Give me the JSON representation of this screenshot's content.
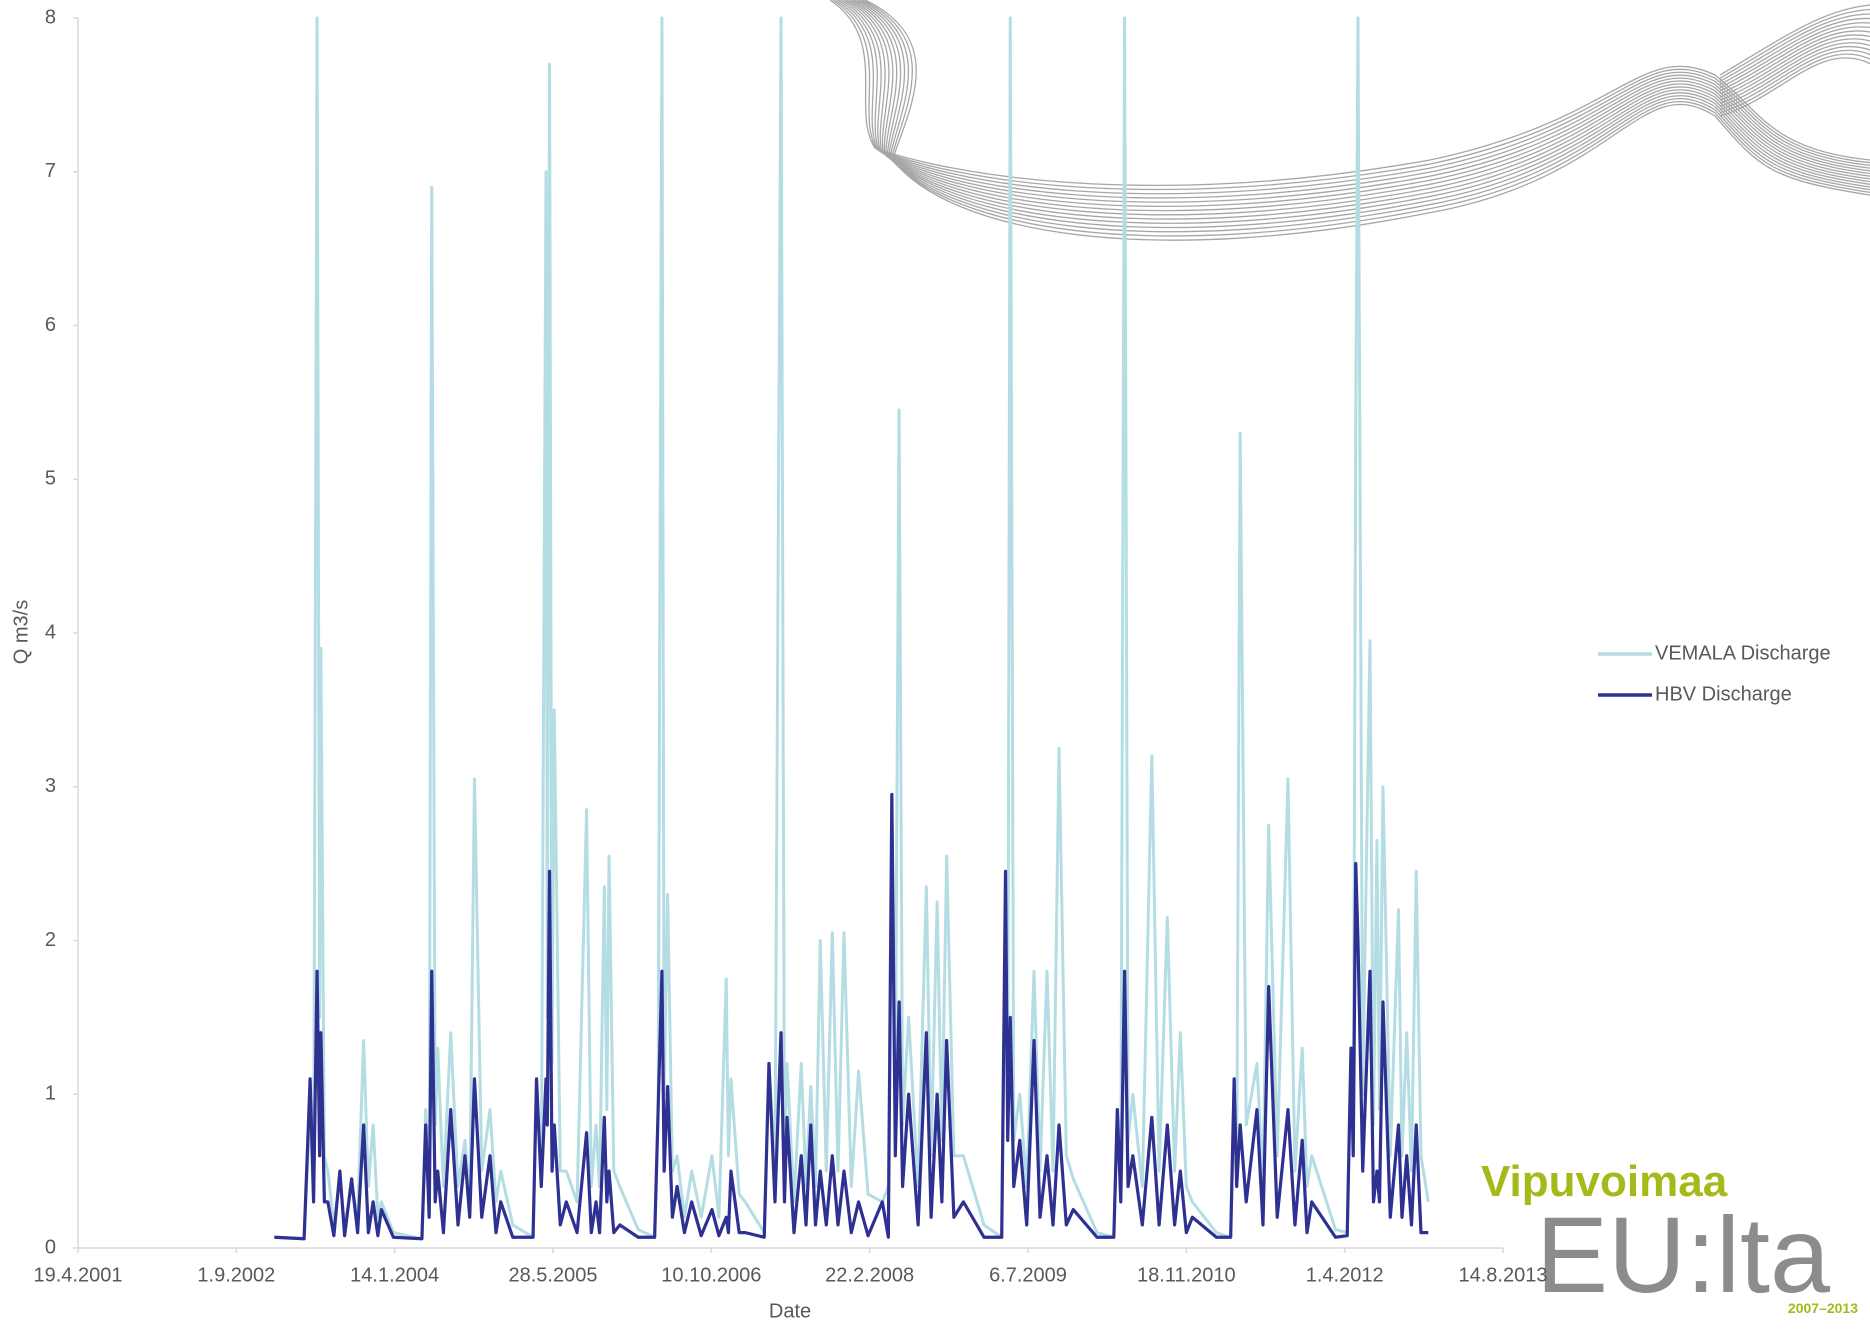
{
  "chart_data": {
    "type": "line",
    "y_label": "Q m3/s",
    "x_label": "Date",
    "xlim": [
      "2001-04-19",
      "2013-08-14"
    ],
    "xticks": [
      {
        "value": "2001-04-19",
        "label": "19.4.2001"
      },
      {
        "value": "2002-09-01",
        "label": "1.9.2002"
      },
      {
        "value": "2004-01-14",
        "label": "14.1.2004"
      },
      {
        "value": "2005-05-28",
        "label": "28.5.2005"
      },
      {
        "value": "2006-10-10",
        "label": "10.10.2006"
      },
      {
        "value": "2008-02-22",
        "label": "22.2.2008"
      },
      {
        "value": "2009-07-06",
        "label": "6.7.2009"
      },
      {
        "value": "2010-11-18",
        "label": "18.11.2010"
      },
      {
        "value": "2012-04-01",
        "label": "1.4.2012"
      },
      {
        "value": "2013-08-14",
        "label": "14.8.2013"
      }
    ],
    "ylim": [
      0,
      8
    ],
    "yticks": [
      0,
      1,
      2,
      3,
      4,
      5,
      6,
      7,
      8
    ],
    "grid": false,
    "legend": "right",
    "x": [
      "2002-12-30",
      "2003-04-03",
      "2003-04-22",
      "2003-05-03",
      "2003-05-14",
      "2003-05-22",
      "2003-05-26",
      "2003-06-06",
      "2003-06-17",
      "2003-07-06",
      "2003-07-25",
      "2003-08-09",
      "2003-08-31",
      "2003-09-19",
      "2003-10-08",
      "2003-10-23",
      "2003-11-07",
      "2003-11-22",
      "2003-12-03",
      "2004-01-10",
      "2004-04-09",
      "2004-04-21",
      "2004-05-02",
      "2004-05-10",
      "2004-05-21",
      "2004-05-29",
      "2004-06-16",
      "2004-07-09",
      "2004-08-01",
      "2004-08-23",
      "2004-09-07",
      "2004-09-22",
      "2004-10-15",
      "2004-11-10",
      "2004-11-29",
      "2004-12-14",
      "2005-01-21",
      "2005-03-26",
      "2005-04-06",
      "2005-04-21",
      "2005-05-06",
      "2005-05-10",
      "2005-05-17",
      "2005-05-25",
      "2005-06-01",
      "2005-06-20",
      "2005-07-09",
      "2005-08-12",
      "2005-09-11",
      "2005-09-26",
      "2005-10-11",
      "2005-10-22",
      "2005-11-06",
      "2005-11-14",
      "2005-11-21",
      "2005-12-06",
      "2005-12-25",
      "2006-02-21",
      "2006-04-14",
      "2006-04-25",
      "2006-05-07",
      "2006-05-14",
      "2006-05-25",
      "2006-06-09",
      "2006-06-24",
      "2006-07-17",
      "2006-08-09",
      "2006-09-08",
      "2006-10-12",
      "2006-11-03",
      "2006-11-26",
      "2006-12-03",
      "2006-12-11",
      "2007-01-06",
      "2007-01-25",
      "2007-03-26",
      "2007-04-10",
      "2007-04-29",
      "2007-05-18",
      "2007-05-29",
      "2007-06-06",
      "2007-06-28",
      "2007-07-21",
      "2007-08-05",
      "2007-08-20",
      "2007-09-04",
      "2007-09-19",
      "2007-10-08",
      "2007-10-27",
      "2007-11-14",
      "2007-12-03",
      "2007-12-26",
      "2008-01-18",
      "2008-02-17",
      "2008-04-02",
      "2008-04-21",
      "2008-05-02",
      "2008-05-13",
      "2008-05-25",
      "2008-06-05",
      "2008-06-24",
      "2008-07-24",
      "2008-08-19",
      "2008-09-03",
      "2008-09-22",
      "2008-10-07",
      "2008-10-22",
      "2008-11-14",
      "2008-12-14",
      "2009-02-17",
      "2009-04-14",
      "2009-04-26",
      "2009-05-03",
      "2009-05-11",
      "2009-05-22",
      "2009-06-10",
      "2009-07-02",
      "2009-07-25",
      "2009-08-13",
      "2009-09-04",
      "2009-09-23",
      "2009-10-12",
      "2009-11-04",
      "2009-11-26",
      "2010-02-09",
      "2010-04-03",
      "2010-04-14",
      "2010-04-25",
      "2010-05-07",
      "2010-05-18",
      "2010-06-02",
      "2010-07-02",
      "2010-08-01",
      "2010-08-24",
      "2010-09-19",
      "2010-10-12",
      "2010-10-30",
      "2010-11-18",
      "2010-12-07",
      "2011-02-21",
      "2011-04-07",
      "2011-04-18",
      "2011-04-26",
      "2011-05-07",
      "2011-05-26",
      "2011-06-29",
      "2011-07-18",
      "2011-08-05",
      "2011-09-01",
      "2011-10-05",
      "2011-10-27",
      "2011-11-19",
      "2011-12-04",
      "2011-12-19",
      "2012-03-03",
      "2012-04-09",
      "2012-04-21",
      "2012-04-28",
      "2012-05-06",
      "2012-05-13",
      "2012-05-28",
      "2012-06-20",
      "2012-07-01",
      "2012-07-12",
      "2012-07-20",
      "2012-07-31",
      "2012-08-23",
      "2012-09-18",
      "2012-09-29",
      "2012-10-14",
      "2012-10-29",
      "2012-11-13",
      "2012-11-28",
      "2012-12-21"
    ],
    "series": [
      {
        "name": "VEMALA Discharge",
        "color": "#b4dde3",
        "values": [
          0.07,
          0.06,
          0.9,
          0.3,
          8,
          1.5,
          3.9,
          0.6,
          0.5,
          0.15,
          0.45,
          0.15,
          0.4,
          0.2,
          1.35,
          0.4,
          0.8,
          0.2,
          0.3,
          0.1,
          0.06,
          0.9,
          0.3,
          6.9,
          0.8,
          1.3,
          0.4,
          1.4,
          0.4,
          0.7,
          0.3,
          3.05,
          0.5,
          0.9,
          0.3,
          0.5,
          0.15,
          0.07,
          1.1,
          0.4,
          7.0,
          1.5,
          7.7,
          1.2,
          3.5,
          0.5,
          0.5,
          0.3,
          2.85,
          0.4,
          0.8,
          0.4,
          2.35,
          0.9,
          2.55,
          0.5,
          0.4,
          0.12,
          0.07,
          0.9,
          8,
          1.0,
          2.3,
          0.5,
          0.6,
          0.2,
          0.5,
          0.2,
          0.6,
          0.2,
          1.75,
          0.6,
          1.1,
          0.35,
          0.3,
          0.1,
          1.2,
          0.5,
          8,
          0.6,
          1.2,
          0.3,
          1.2,
          0.4,
          1.05,
          0.4,
          2.0,
          0.5,
          2.05,
          0.5,
          2.05,
          0.4,
          1.15,
          0.35,
          0.3,
          0.4,
          2.9,
          1.0,
          5.45,
          0.8,
          1.5,
          0.4,
          2.35,
          0.6,
          2.25,
          0.7,
          2.55,
          0.6,
          0.6,
          0.15,
          0.07,
          2.3,
          0.8,
          8,
          0.7,
          1.0,
          0.4,
          1.8,
          0.5,
          1.8,
          0.5,
          3.25,
          0.6,
          0.45,
          0.1,
          0.07,
          0.9,
          0.4,
          8,
          0.7,
          1.0,
          0.4,
          3.2,
          0.5,
          2.15,
          0.5,
          1.4,
          0.4,
          0.3,
          0.1,
          0.07,
          1.1,
          0.5,
          5.3,
          0.8,
          1.2,
          0.4,
          2.75,
          0.6,
          3.05,
          0.5,
          1.3,
          0.4,
          0.6,
          0.12,
          0.1,
          1.3,
          0.6,
          5.35,
          8,
          1.0,
          3.95,
          0.8,
          2.65,
          0.9,
          3.0,
          0.6,
          2.2,
          0.6,
          1.4,
          0.5,
          2.45,
          0.6,
          0.3
        ]
      },
      {
        "name": "HBV Discharge",
        "color": "#2e3192",
        "values": [
          0.07,
          0.06,
          1.1,
          0.3,
          1.8,
          0.6,
          1.4,
          0.3,
          0.3,
          0.08,
          0.5,
          0.08,
          0.45,
          0.1,
          0.8,
          0.1,
          0.3,
          0.08,
          0.25,
          0.07,
          0.06,
          0.8,
          0.2,
          1.8,
          0.3,
          0.5,
          0.1,
          0.9,
          0.15,
          0.6,
          0.2,
          1.1,
          0.2,
          0.6,
          0.1,
          0.3,
          0.07,
          0.07,
          1.1,
          0.4,
          1.1,
          0.8,
          2.45,
          0.5,
          0.8,
          0.15,
          0.3,
          0.1,
          0.75,
          0.1,
          0.3,
          0.1,
          0.85,
          0.3,
          0.5,
          0.1,
          0.15,
          0.07,
          0.07,
          0.9,
          1.8,
          0.5,
          1.05,
          0.2,
          0.4,
          0.1,
          0.3,
          0.08,
          0.25,
          0.08,
          0.2,
          0.1,
          0.5,
          0.1,
          0.1,
          0.07,
          1.2,
          0.3,
          1.4,
          0.3,
          0.85,
          0.1,
          0.6,
          0.15,
          0.8,
          0.15,
          0.5,
          0.15,
          0.6,
          0.15,
          0.5,
          0.1,
          0.3,
          0.08,
          0.3,
          0.07,
          2.95,
          0.6,
          1.6,
          0.4,
          1.0,
          0.15,
          1.4,
          0.2,
          1.0,
          0.3,
          1.35,
          0.2,
          0.3,
          0.07,
          0.07,
          2.45,
          0.7,
          1.5,
          0.4,
          0.7,
          0.15,
          1.35,
          0.2,
          0.6,
          0.15,
          0.8,
          0.15,
          0.25,
          0.07,
          0.07,
          0.9,
          0.3,
          1.8,
          0.4,
          0.6,
          0.15,
          0.85,
          0.15,
          0.8,
          0.15,
          0.5,
          0.1,
          0.2,
          0.07,
          0.07,
          1.1,
          0.4,
          0.8,
          0.3,
          0.9,
          0.15,
          1.7,
          0.2,
          0.9,
          0.15,
          0.7,
          0.1,
          0.3,
          0.07,
          0.08,
          1.3,
          0.6,
          2.5,
          2.0,
          0.5,
          1.8,
          0.3,
          0.5,
          0.3,
          1.6,
          0.2,
          0.8,
          0.2,
          0.6,
          0.15,
          0.8,
          0.1,
          0.1
        ]
      }
    ]
  },
  "logo": {
    "name": "Vipuvoimaa",
    "tagline": "EU:lta",
    "years": "2007–2013"
  }
}
